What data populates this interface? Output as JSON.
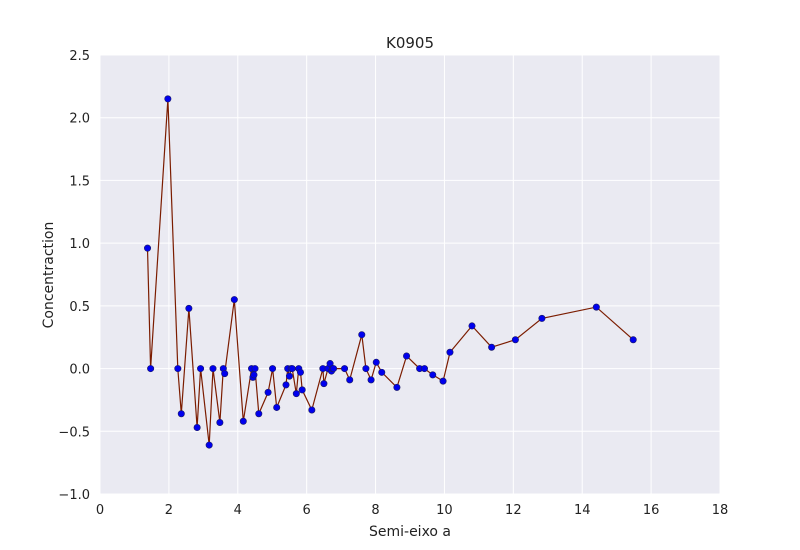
{
  "chart_data": {
    "type": "scatter",
    "title": "K0905",
    "xlabel": "Semi-eixo a",
    "ylabel": "Concentraction",
    "xlim": [
      0,
      18
    ],
    "ylim": [
      -1.0,
      2.5
    ],
    "xticks": [
      0,
      2,
      4,
      6,
      8,
      10,
      12,
      14,
      16,
      18
    ],
    "yticks": [
      -1.0,
      -0.5,
      0.0,
      0.5,
      1.0,
      1.5,
      2.0,
      2.5
    ],
    "xtick_labels": [
      "0",
      "2",
      "4",
      "6",
      "8",
      "10",
      "12",
      "14",
      "16",
      "18"
    ],
    "ytick_labels": [
      "−1.0",
      "−0.5",
      "0.0",
      "0.5",
      "1.0",
      "1.5",
      "2.0",
      "2.5"
    ],
    "grid": true,
    "style": {
      "background": "#eaeaf2",
      "grid_color": "#ffffff",
      "line_color": "#7b1c00",
      "marker_color": "#0000ee",
      "marker_edge": "#1a1a66"
    },
    "series": [
      {
        "x": [
          1.38,
          1.47,
          1.97,
          2.26,
          2.36,
          2.58,
          2.82,
          2.92,
          3.17,
          3.28,
          3.48,
          3.58,
          3.62,
          3.9,
          4.16,
          4.4,
          4.44,
          4.47,
          4.5,
          4.61,
          4.88,
          5.01,
          5.13,
          5.4,
          5.45,
          5.5,
          5.55,
          5.58,
          5.7,
          5.77,
          5.82,
          5.87,
          6.15,
          6.47,
          6.5,
          6.62,
          6.68,
          6.72,
          6.75,
          6.78,
          7.1,
          7.25,
          7.6,
          7.72,
          7.87,
          8.02,
          8.18,
          8.62,
          8.9,
          9.28,
          9.42,
          9.66,
          9.96,
          10.16,
          10.8,
          11.37,
          12.06,
          12.83,
          14.41,
          15.48
        ],
        "y": [
          0.96,
          0.0,
          2.15,
          0.0,
          -0.36,
          0.48,
          -0.47,
          0.0,
          -0.61,
          0.0,
          -0.43,
          0.0,
          -0.04,
          0.55,
          -0.42,
          0.0,
          -0.07,
          -0.05,
          0.0,
          -0.36,
          -0.19,
          0.0,
          -0.31,
          -0.13,
          0.0,
          -0.06,
          0.0,
          0.0,
          -0.2,
          0.0,
          -0.03,
          -0.17,
          -0.33,
          0.0,
          -0.12,
          0.0,
          0.04,
          -0.02,
          0.0,
          0.0,
          0.0,
          -0.09,
          0.27,
          0.0,
          -0.09,
          0.05,
          -0.03,
          -0.15,
          0.1,
          0.0,
          0.0,
          -0.05,
          -0.1,
          0.13,
          0.34,
          0.17,
          0.23,
          0.4,
          0.49,
          0.23
        ]
      }
    ]
  }
}
